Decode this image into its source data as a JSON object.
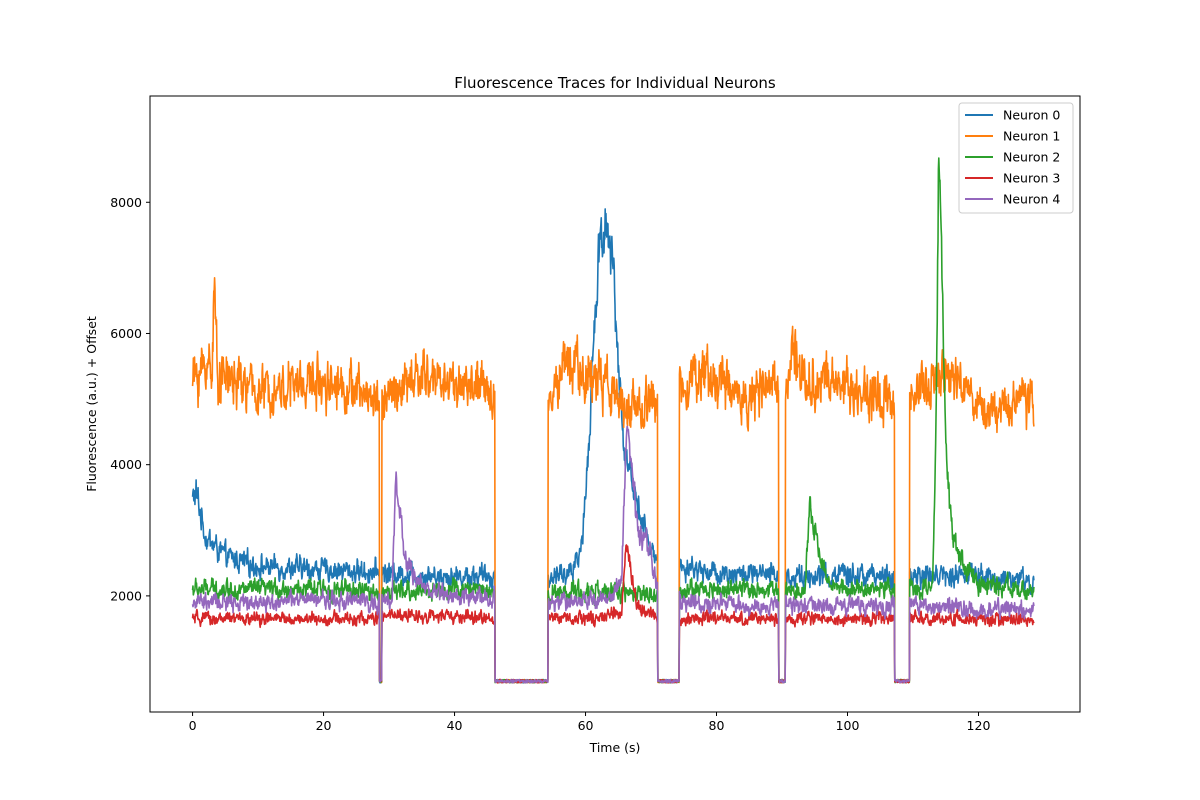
{
  "chart_data": {
    "type": "line",
    "title": "Fluorescence Traces for Individual Neurons",
    "xlabel": "Time (s)",
    "ylabel": "Fluorescence (a.u.) + Offset",
    "xlim": [
      -6.5,
      135.5
    ],
    "ylim": [
      230,
      9620
    ],
    "xticks": [
      0,
      20,
      40,
      60,
      80,
      100,
      120
    ],
    "yticks": [
      2000,
      4000,
      6000,
      8000
    ],
    "grid": false,
    "legend_position": "top-right",
    "x_range": [
      0,
      128.5
    ],
    "gaps": [
      [
        28.5,
        28.9
      ],
      [
        46.2,
        54.3
      ],
      [
        71.0,
        74.3
      ],
      [
        89.5,
        90.5
      ],
      [
        107.2,
        109.5
      ],
      [
        128.5,
        128.9
      ]
    ],
    "gap_level": 700,
    "series": [
      {
        "name": "Neuron 0",
        "color": "#1f77b4",
        "baseline": 2300,
        "noise": 150,
        "keypoints": [
          [
            0,
            3500
          ],
          [
            0.6,
            3550
          ],
          [
            2,
            2900
          ],
          [
            5,
            2600
          ],
          [
            10,
            2450
          ],
          [
            20,
            2400
          ],
          [
            30,
            2350
          ],
          [
            40,
            2300
          ],
          [
            54.5,
            2300
          ],
          [
            58,
            2350
          ],
          [
            59.5,
            2800
          ],
          [
            60.5,
            4300
          ],
          [
            61.5,
            6300
          ],
          [
            62,
            7300
          ],
          [
            63,
            7700
          ],
          [
            64,
            7300
          ],
          [
            65,
            5600
          ],
          [
            66,
            4200
          ],
          [
            68,
            3400
          ],
          [
            70,
            2700
          ],
          [
            71,
            2500
          ],
          [
            74.5,
            2450
          ],
          [
            80,
            2350
          ],
          [
            90,
            2300
          ],
          [
            100,
            2300
          ],
          [
            110,
            2300
          ],
          [
            120,
            2300
          ],
          [
            128.5,
            2200
          ]
        ]
      },
      {
        "name": "Neuron 1",
        "color": "#ff7f0e",
        "baseline": 5150,
        "noise": 330,
        "keypoints": [
          [
            0,
            5300
          ],
          [
            3,
            5600
          ],
          [
            3.3,
            6700
          ],
          [
            3.8,
            5400
          ],
          [
            10,
            5100
          ],
          [
            20,
            5300
          ],
          [
            28.4,
            5000
          ],
          [
            29.2,
            5000
          ],
          [
            35,
            5350
          ],
          [
            40,
            5250
          ],
          [
            46,
            5100
          ],
          [
            54.5,
            5150
          ],
          [
            57,
            5500
          ],
          [
            62,
            5300
          ],
          [
            66,
            4900
          ],
          [
            70,
            4900
          ],
          [
            74.5,
            5300
          ],
          [
            78,
            5400
          ],
          [
            85,
            5000
          ],
          [
            90.8,
            5300
          ],
          [
            92,
            5900
          ],
          [
            93,
            5300
          ],
          [
            100,
            5200
          ],
          [
            107,
            5000
          ],
          [
            109.7,
            5000
          ],
          [
            115,
            5400
          ],
          [
            120,
            4900
          ],
          [
            128.5,
            5000
          ]
        ]
      },
      {
        "name": "Neuron 2",
        "color": "#2ca02c",
        "baseline": 2100,
        "noise": 130,
        "keypoints": [
          [
            0,
            2100
          ],
          [
            10,
            2100
          ],
          [
            20,
            2100
          ],
          [
            28.4,
            2050
          ],
          [
            29.2,
            2050
          ],
          [
            40,
            2100
          ],
          [
            46,
            2100
          ],
          [
            54.5,
            2050
          ],
          [
            65,
            2050
          ],
          [
            71,
            2000
          ],
          [
            74.5,
            2100
          ],
          [
            89.5,
            2100
          ],
          [
            90.8,
            2100
          ],
          [
            93.5,
            2100
          ],
          [
            94.2,
            3300
          ],
          [
            95,
            3000
          ],
          [
            96,
            2500
          ],
          [
            97,
            2200
          ],
          [
            100,
            2100
          ],
          [
            107,
            2100
          ],
          [
            109.7,
            2100
          ],
          [
            113,
            2100
          ],
          [
            113.5,
            4500
          ],
          [
            113.9,
            8800
          ],
          [
            114.3,
            7500
          ],
          [
            115,
            4300
          ],
          [
            116,
            2900
          ],
          [
            117.5,
            2500
          ],
          [
            120,
            2200
          ],
          [
            128.5,
            2050
          ]
        ]
      },
      {
        "name": "Neuron 3",
        "color": "#d62728",
        "baseline": 1650,
        "noise": 90,
        "keypoints": [
          [
            0,
            1650
          ],
          [
            10,
            1650
          ],
          [
            20,
            1650
          ],
          [
            28.4,
            1650
          ],
          [
            29.2,
            1700
          ],
          [
            35,
            1700
          ],
          [
            46,
            1650
          ],
          [
            54.5,
            1650
          ],
          [
            62,
            1650
          ],
          [
            65.5,
            1750
          ],
          [
            66.2,
            2800
          ],
          [
            67,
            2300
          ],
          [
            68,
            1850
          ],
          [
            71,
            1650
          ],
          [
            74.5,
            1650
          ],
          [
            89.5,
            1650
          ],
          [
            90.8,
            1650
          ],
          [
            107,
            1650
          ],
          [
            109.7,
            1650
          ],
          [
            120,
            1650
          ],
          [
            128.5,
            1650
          ]
        ]
      },
      {
        "name": "Neuron 4",
        "color": "#9467bd",
        "baseline": 1900,
        "noise": 120,
        "keypoints": [
          [
            0,
            1900
          ],
          [
            10,
            1900
          ],
          [
            20,
            1950
          ],
          [
            28.4,
            1900
          ],
          [
            29.2,
            1900
          ],
          [
            30.5,
            2000
          ],
          [
            31,
            3800
          ],
          [
            31.6,
            3300
          ],
          [
            32.5,
            2600
          ],
          [
            34,
            2250
          ],
          [
            36,
            2100
          ],
          [
            40,
            2000
          ],
          [
            46,
            1950
          ],
          [
            54.5,
            1900
          ],
          [
            64,
            1950
          ],
          [
            65.5,
            2300
          ],
          [
            66.3,
            4600
          ],
          [
            67,
            4000
          ],
          [
            68,
            3000
          ],
          [
            69.5,
            2800
          ],
          [
            71,
            2100
          ],
          [
            74.5,
            1900
          ],
          [
            89.5,
            1850
          ],
          [
            90.8,
            1850
          ],
          [
            100,
            1850
          ],
          [
            107,
            1850
          ],
          [
            109.7,
            1850
          ],
          [
            120,
            1800
          ],
          [
            128.5,
            1800
          ]
        ]
      }
    ]
  }
}
